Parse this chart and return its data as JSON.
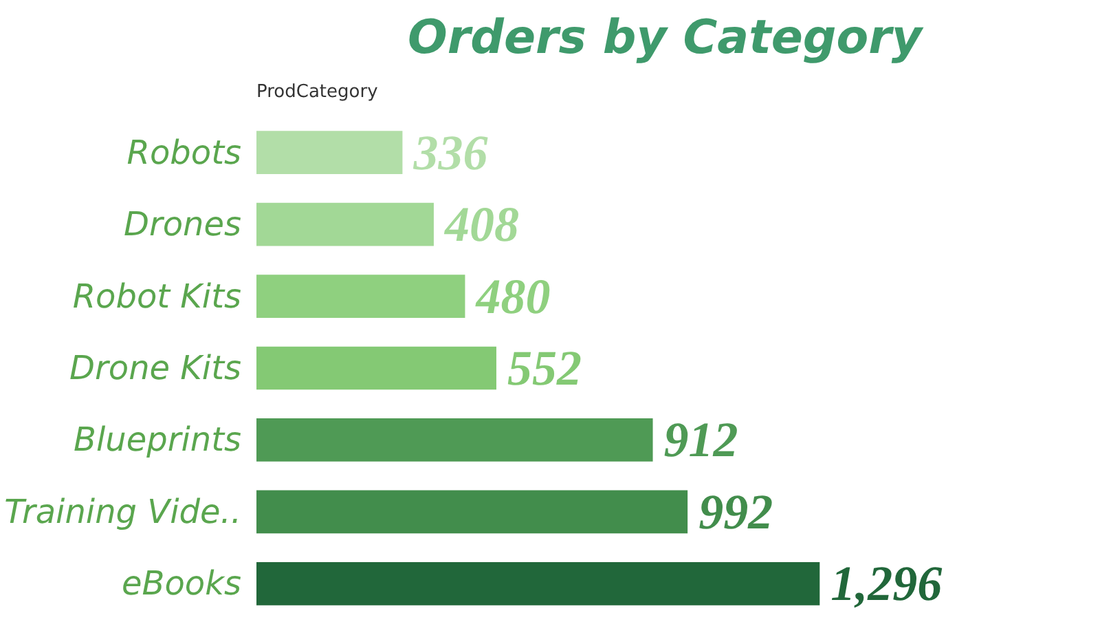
{
  "chart_data": {
    "type": "bar",
    "orientation": "horizontal",
    "title": "Orders by Category",
    "ylabel": "ProdCategory",
    "categories": [
      "Robots",
      "Drones",
      "Robot Kits",
      "Drone Kits",
      "Blueprints",
      "Training Vide..",
      "eBooks"
    ],
    "values": [
      336,
      408,
      480,
      552,
      912,
      992,
      1296
    ],
    "colors": [
      "#b2dea8",
      "#a2d896",
      "#8fd07f",
      "#84c974",
      "#4f9a55",
      "#428d4c",
      "#21673a"
    ],
    "value_labels": [
      "336",
      "408",
      "480",
      "552",
      "912",
      "992",
      "1,296"
    ],
    "tick_labels": "y"
  }
}
